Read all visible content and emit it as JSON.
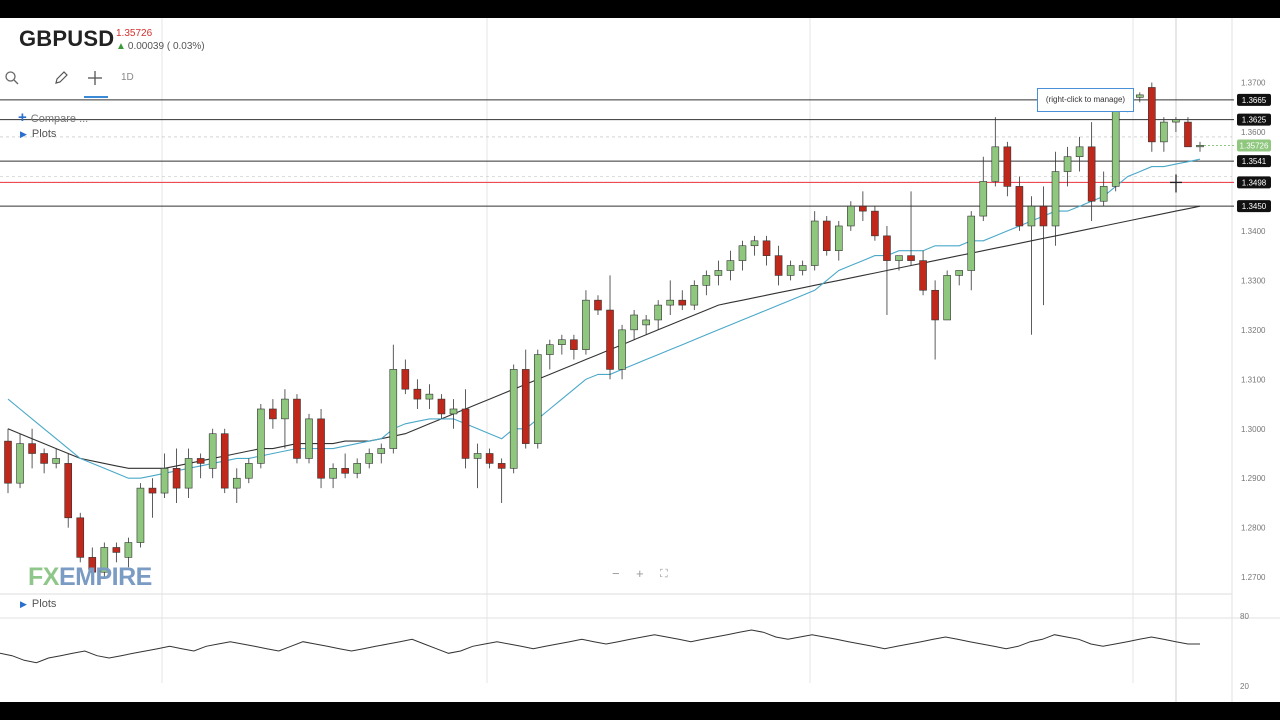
{
  "header": {
    "symbol": "GBPUSD",
    "price": "1.35726",
    "change": "0.00039 ( 0.03%)"
  },
  "toolbar": {
    "search_icon": "search-icon",
    "draw_icon": "pencil-icon",
    "crosshair_icon": "crosshair-icon",
    "timeframe": "1D"
  },
  "compare_label": "Compare ...",
  "plots_label_top": "Plots",
  "plots_label_bottom": "Plots",
  "tooltip": "(right-click to manage)",
  "zoom": {
    "minus": "−",
    "plus": "+",
    "fullscreen": "⛶"
  },
  "logo": {
    "fx": "FX",
    "empire": "EMPIRE"
  },
  "colors": {
    "bull": "#8fc77f",
    "bear": "#c0281c",
    "ma_fast": "#4aa8c9",
    "ma_slow": "#333333",
    "hline_red": "#e8323c",
    "badge": "#111111"
  },
  "chart_data": {
    "type": "candlestick",
    "y_ticks": [
      "1.3700",
      "1.3600",
      "1.3400",
      "1.3300",
      "1.3200",
      "1.3100",
      "1.3000",
      "1.2900",
      "1.2800",
      "1.2700"
    ],
    "ylim": [
      1.267,
      1.379
    ],
    "horizontal_levels": [
      {
        "label": "1.3665",
        "value": 1.3665,
        "color": "#333333"
      },
      {
        "label": "1.3625",
        "value": 1.3625,
        "color": "#333333"
      },
      {
        "label": "1.3541",
        "value": 1.3541,
        "color": "#333333"
      },
      {
        "label": "1.3498",
        "value": 1.3498,
        "color": "#e8323c"
      },
      {
        "label": "1.3450",
        "value": 1.345,
        "color": "#333333"
      }
    ],
    "current_price_label": "1.35726",
    "candles": [
      [
        1.2975,
        1.3,
        1.287,
        1.289
      ],
      [
        1.289,
        1.299,
        1.288,
        1.297
      ],
      [
        1.297,
        1.3,
        1.292,
        1.295
      ],
      [
        1.295,
        1.296,
        1.291,
        1.293
      ],
      [
        1.293,
        1.296,
        1.292,
        1.294
      ],
      [
        1.293,
        1.295,
        1.28,
        1.282
      ],
      [
        1.282,
        1.283,
        1.273,
        1.274
      ],
      [
        1.274,
        1.276,
        1.269,
        1.271
      ],
      [
        1.271,
        1.277,
        1.27,
        1.276
      ],
      [
        1.276,
        1.277,
        1.273,
        1.275
      ],
      [
        1.274,
        1.278,
        1.272,
        1.277
      ],
      [
        1.277,
        1.289,
        1.276,
        1.288
      ],
      [
        1.288,
        1.29,
        1.282,
        1.287
      ],
      [
        1.287,
        1.295,
        1.286,
        1.292
      ],
      [
        1.292,
        1.296,
        1.285,
        1.288
      ],
      [
        1.288,
        1.296,
        1.286,
        1.294
      ],
      [
        1.294,
        1.295,
        1.29,
        1.293
      ],
      [
        1.292,
        1.3,
        1.29,
        1.299
      ],
      [
        1.299,
        1.3,
        1.287,
        1.288
      ],
      [
        1.288,
        1.292,
        1.285,
        1.29
      ],
      [
        1.29,
        1.294,
        1.289,
        1.293
      ],
      [
        1.293,
        1.305,
        1.292,
        1.304
      ],
      [
        1.304,
        1.306,
        1.3,
        1.302
      ],
      [
        1.302,
        1.308,
        1.296,
        1.306
      ],
      [
        1.306,
        1.307,
        1.293,
        1.294
      ],
      [
        1.294,
        1.303,
        1.293,
        1.302
      ],
      [
        1.302,
        1.304,
        1.288,
        1.29
      ],
      [
        1.29,
        1.293,
        1.288,
        1.292
      ],
      [
        1.292,
        1.295,
        1.29,
        1.291
      ],
      [
        1.291,
        1.294,
        1.29,
        1.293
      ],
      [
        1.293,
        1.296,
        1.292,
        1.295
      ],
      [
        1.295,
        1.297,
        1.293,
        1.296
      ],
      [
        1.296,
        1.317,
        1.295,
        1.312
      ],
      [
        1.312,
        1.314,
        1.307,
        1.308
      ],
      [
        1.308,
        1.31,
        1.304,
        1.306
      ],
      [
        1.306,
        1.309,
        1.304,
        1.307
      ],
      [
        1.306,
        1.307,
        1.302,
        1.303
      ],
      [
        1.303,
        1.306,
        1.3,
        1.304
      ],
      [
        1.304,
        1.308,
        1.292,
        1.294
      ],
      [
        1.294,
        1.297,
        1.288,
        1.295
      ],
      [
        1.295,
        1.296,
        1.292,
        1.293
      ],
      [
        1.293,
        1.294,
        1.285,
        1.292
      ],
      [
        1.292,
        1.313,
        1.291,
        1.312
      ],
      [
        1.312,
        1.316,
        1.296,
        1.297
      ],
      [
        1.297,
        1.316,
        1.296,
        1.315
      ],
      [
        1.315,
        1.318,
        1.312,
        1.317
      ],
      [
        1.317,
        1.319,
        1.315,
        1.318
      ],
      [
        1.318,
        1.319,
        1.314,
        1.316
      ],
      [
        1.316,
        1.328,
        1.315,
        1.326
      ],
      [
        1.326,
        1.327,
        1.323,
        1.324
      ],
      [
        1.324,
        1.331,
        1.31,
        1.312
      ],
      [
        1.312,
        1.321,
        1.31,
        1.32
      ],
      [
        1.32,
        1.324,
        1.318,
        1.323
      ],
      [
        1.321,
        1.323,
        1.319,
        1.322
      ],
      [
        1.322,
        1.326,
        1.32,
        1.325
      ],
      [
        1.325,
        1.33,
        1.323,
        1.326
      ],
      [
        1.326,
        1.328,
        1.324,
        1.325
      ],
      [
        1.325,
        1.33,
        1.324,
        1.329
      ],
      [
        1.329,
        1.332,
        1.327,
        1.331
      ],
      [
        1.331,
        1.334,
        1.329,
        1.332
      ],
      [
        1.332,
        1.336,
        1.33,
        1.334
      ],
      [
        1.334,
        1.338,
        1.332,
        1.337
      ],
      [
        1.337,
        1.339,
        1.335,
        1.338
      ],
      [
        1.338,
        1.339,
        1.333,
        1.335
      ],
      [
        1.335,
        1.337,
        1.329,
        1.331
      ],
      [
        1.331,
        1.334,
        1.33,
        1.333
      ],
      [
        1.332,
        1.334,
        1.331,
        1.333
      ],
      [
        1.333,
        1.344,
        1.332,
        1.342
      ],
      [
        1.342,
        1.343,
        1.335,
        1.336
      ],
      [
        1.336,
        1.342,
        1.334,
        1.341
      ],
      [
        1.341,
        1.346,
        1.34,
        1.345
      ],
      [
        1.345,
        1.348,
        1.342,
        1.344
      ],
      [
        1.344,
        1.345,
        1.338,
        1.339
      ],
      [
        1.339,
        1.341,
        1.323,
        1.334
      ],
      [
        1.334,
        1.335,
        1.332,
        1.335
      ],
      [
        1.335,
        1.348,
        1.333,
        1.334
      ],
      [
        1.334,
        1.336,
        1.327,
        1.328
      ],
      [
        1.328,
        1.33,
        1.314,
        1.322
      ],
      [
        1.322,
        1.332,
        1.322,
        1.331
      ],
      [
        1.331,
        1.332,
        1.329,
        1.332
      ],
      [
        1.332,
        1.344,
        1.328,
        1.343
      ],
      [
        1.343,
        1.355,
        1.342,
        1.35
      ],
      [
        1.35,
        1.363,
        1.349,
        1.357
      ],
      [
        1.357,
        1.358,
        1.347,
        1.349
      ],
      [
        1.349,
        1.351,
        1.34,
        1.341
      ],
      [
        1.341,
        1.347,
        1.319,
        1.345
      ],
      [
        1.345,
        1.349,
        1.325,
        1.341
      ],
      [
        1.341,
        1.356,
        1.337,
        1.352
      ],
      [
        1.352,
        1.357,
        1.349,
        1.355
      ],
      [
        1.355,
        1.359,
        1.352,
        1.357
      ],
      [
        1.357,
        1.362,
        1.342,
        1.346
      ],
      [
        1.346,
        1.352,
        1.345,
        1.349
      ],
      [
        1.349,
        1.367,
        1.348,
        1.366
      ],
      [
        1.366,
        1.368,
        1.364,
        1.367
      ],
      [
        1.367,
        1.368,
        1.366,
        1.3675
      ],
      [
        1.369,
        1.37,
        1.356,
        1.358
      ],
      [
        1.358,
        1.363,
        1.356,
        1.362
      ],
      [
        1.362,
        1.363,
        1.36,
        1.3625
      ],
      [
        1.362,
        1.363,
        1.357,
        1.357
      ],
      [
        1.357,
        1.358,
        1.356,
        1.3573
      ]
    ],
    "ma_fast": [
      1.306,
      1.304,
      1.302,
      1.3,
      1.298,
      1.296,
      1.294,
      1.293,
      1.292,
      1.291,
      1.29,
      1.29,
      1.2905,
      1.291,
      1.2915,
      1.292,
      1.2925,
      1.293,
      1.2935,
      1.294,
      1.294,
      1.2945,
      1.295,
      1.2955,
      1.296,
      1.296,
      1.296,
      1.296,
      1.2965,
      1.297,
      1.2975,
      1.298,
      1.3,
      1.301,
      1.3015,
      1.302,
      1.302,
      1.302,
      1.301,
      1.3,
      1.299,
      1.298,
      1.3,
      1.3,
      1.302,
      1.304,
      1.306,
      1.308,
      1.31,
      1.311,
      1.311,
      1.312,
      1.313,
      1.314,
      1.315,
      1.316,
      1.317,
      1.318,
      1.319,
      1.32,
      1.321,
      1.322,
      1.323,
      1.324,
      1.325,
      1.326,
      1.327,
      1.328,
      1.33,
      1.332,
      1.333,
      1.334,
      1.335,
      1.335,
      1.336,
      1.336,
      1.336,
      1.337,
      1.337,
      1.337,
      1.338,
      1.338,
      1.339,
      1.34,
      1.341,
      1.342,
      1.343,
      1.344,
      1.344,
      1.345,
      1.346,
      1.347,
      1.349,
      1.351,
      1.352,
      1.353,
      1.353,
      1.3535,
      1.354,
      1.3545
    ],
    "ma_slow": [
      1.3,
      1.299,
      1.298,
      1.297,
      1.296,
      1.295,
      1.294,
      1.2935,
      1.293,
      1.2925,
      1.292,
      1.292,
      1.292,
      1.292,
      1.2925,
      1.293,
      1.2935,
      1.294,
      1.2945,
      1.295,
      1.2955,
      1.296,
      1.296,
      1.2965,
      1.297,
      1.297,
      1.297,
      1.297,
      1.2975,
      1.2975,
      1.2975,
      1.298,
      1.2985,
      1.299,
      1.3,
      1.301,
      1.302,
      1.303,
      1.304,
      1.305,
      1.306,
      1.307,
      1.308,
      1.309,
      1.31,
      1.311,
      1.312,
      1.313,
      1.314,
      1.315,
      1.316,
      1.317,
      1.318,
      1.319,
      1.32,
      1.321,
      1.322,
      1.323,
      1.324,
      1.325,
      1.3255,
      1.326,
      1.3265,
      1.327,
      1.3275,
      1.328,
      1.3285,
      1.329,
      1.3295,
      1.33,
      1.3305,
      1.331,
      1.3315,
      1.332,
      1.3325,
      1.333,
      1.3335,
      1.334,
      1.3345,
      1.335,
      1.3355,
      1.336,
      1.3365,
      1.337,
      1.3375,
      1.338,
      1.3385,
      1.339,
      1.3395,
      1.34,
      1.3405,
      1.341,
      1.3415,
      1.342,
      1.3425,
      1.343,
      1.3435,
      1.344,
      1.3445,
      1.345
    ],
    "oscillator": {
      "ylim": [
        20,
        80
      ],
      "ticks": [
        "80",
        "20"
      ],
      "values": [
        48,
        46,
        42,
        40,
        44,
        46,
        48,
        50,
        46,
        44,
        46,
        48,
        50,
        52,
        54,
        52,
        50,
        54,
        56,
        58,
        56,
        54,
        52,
        50,
        54,
        58,
        56,
        54,
        52,
        50,
        52,
        54,
        56,
        58,
        60,
        56,
        52,
        48,
        50,
        54,
        56,
        58,
        56,
        54,
        52,
        54,
        56,
        58,
        60,
        58,
        56,
        58,
        60,
        62,
        64,
        62,
        60,
        58,
        60,
        62,
        64,
        66,
        68,
        66,
        62,
        60,
        62,
        64,
        62,
        60,
        58,
        56,
        54,
        52,
        54,
        56,
        58,
        60,
        62,
        60,
        58,
        56,
        54,
        52,
        54,
        58,
        60,
        64,
        62,
        60,
        56,
        54,
        56,
        58,
        60,
        62,
        60,
        58,
        56,
        56
      ]
    }
  }
}
